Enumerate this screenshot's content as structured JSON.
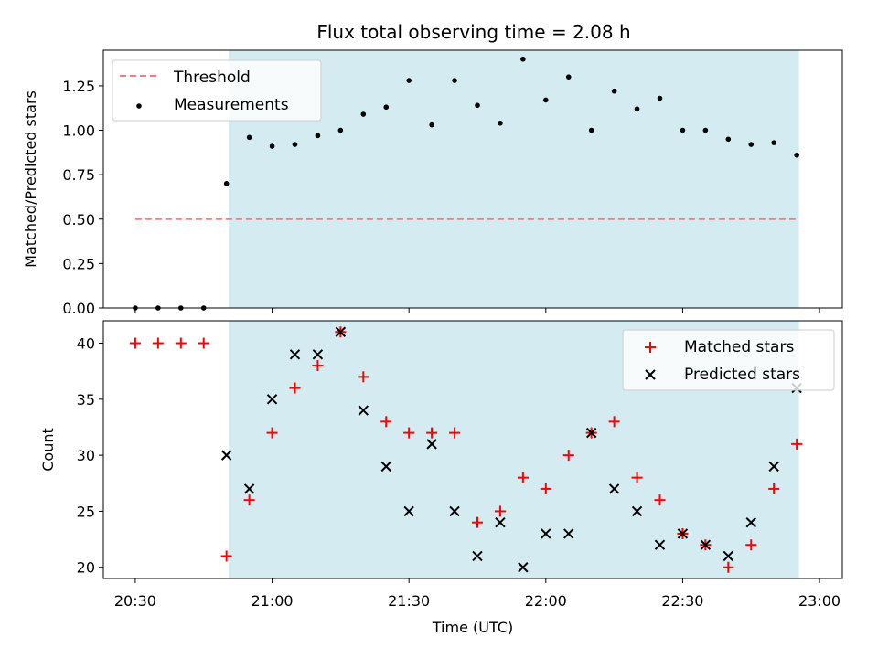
{
  "chart_data": {
    "type": "scatter",
    "title": "Flux total observing time = 2.08 h",
    "xlabel": "Time (UTC)",
    "x_ticks": [
      "20:30",
      "21:00",
      "21:30",
      "22:00",
      "22:30",
      "23:00"
    ],
    "x_tick_minutes": [
      0,
      30,
      60,
      90,
      120,
      150
    ],
    "xlim_minutes": [
      -7,
      155
    ],
    "times": [
      "20:30",
      "20:35",
      "20:40",
      "20:45",
      "20:50",
      "20:55",
      "21:00",
      "21:05",
      "21:10",
      "21:15",
      "21:20",
      "21:25",
      "21:30",
      "21:35",
      "21:40",
      "21:45",
      "21:50",
      "21:55",
      "22:00",
      "22:05",
      "22:10",
      "22:15",
      "22:20",
      "22:25",
      "22:30",
      "22:35",
      "22:40",
      "22:45",
      "22:50",
      "22:55"
    ],
    "x_minutes": [
      0,
      5,
      10,
      15,
      20,
      25,
      30,
      35,
      40,
      45,
      50,
      55,
      60,
      65,
      70,
      75,
      80,
      85,
      90,
      95,
      100,
      105,
      110,
      115,
      120,
      125,
      130,
      135,
      140,
      145
    ],
    "observing_window": {
      "start": "20:50",
      "end": "22:55",
      "start_minutes": 20.5,
      "end_minutes": 145.5,
      "color": "#d4ebf1"
    },
    "panels": [
      {
        "ylabel": "Matched/Predicted stars",
        "ylim": [
          0,
          1.45
        ],
        "y_ticks": [
          "0.00",
          "0.25",
          "0.50",
          "0.75",
          "1.00",
          "1.25"
        ],
        "y_tick_values": [
          0,
          0.25,
          0.5,
          0.75,
          1.0,
          1.25
        ],
        "threshold": {
          "name": "Threshold",
          "value": 0.5,
          "x_range_minutes": [
            0,
            145
          ],
          "color": "#f08080"
        },
        "series": [
          {
            "name": "Measurements",
            "marker": "dot",
            "color": "#000000",
            "values": [
              0,
              0,
              0,
              0,
              0.7,
              0.96,
              0.91,
              0.92,
              0.97,
              1.0,
              1.09,
              1.13,
              1.28,
              1.03,
              1.28,
              1.14,
              1.04,
              1.4,
              1.17,
              1.3,
              1.0,
              1.22,
              1.12,
              1.18,
              1.0,
              1.0,
              0.95,
              0.92,
              0.93,
              0.86
            ]
          }
        ],
        "legend": {
          "position": "top-left",
          "entries": [
            "Threshold",
            "Measurements"
          ]
        }
      },
      {
        "ylabel": "Count",
        "ylim": [
          19,
          42
        ],
        "y_ticks": [
          "20",
          "25",
          "30",
          "35",
          "40"
        ],
        "y_tick_values": [
          20,
          25,
          30,
          35,
          40
        ],
        "series": [
          {
            "name": "Matched stars",
            "marker": "plus",
            "color": "#ff0000",
            "values": [
              40,
              40,
              40,
              40,
              21,
              26,
              32,
              36,
              38,
              41,
              37,
              33,
              32,
              32,
              32,
              24,
              25,
              28,
              27,
              30,
              32,
              33,
              28,
              26,
              23,
              22,
              20,
              22,
              27,
              31
            ]
          },
          {
            "name": "Predicted stars",
            "marker": "x",
            "color": "#000000",
            "values": [
              null,
              null,
              null,
              null,
              30,
              27,
              35,
              39,
              39,
              41,
              34,
              29,
              25,
              31,
              25,
              21,
              24,
              20,
              23,
              23,
              32,
              27,
              25,
              22,
              23,
              22,
              21,
              24,
              29,
              36
            ]
          }
        ],
        "legend": {
          "position": "top-right",
          "entries": [
            "Matched stars",
            "Predicted stars"
          ]
        }
      }
    ]
  }
}
